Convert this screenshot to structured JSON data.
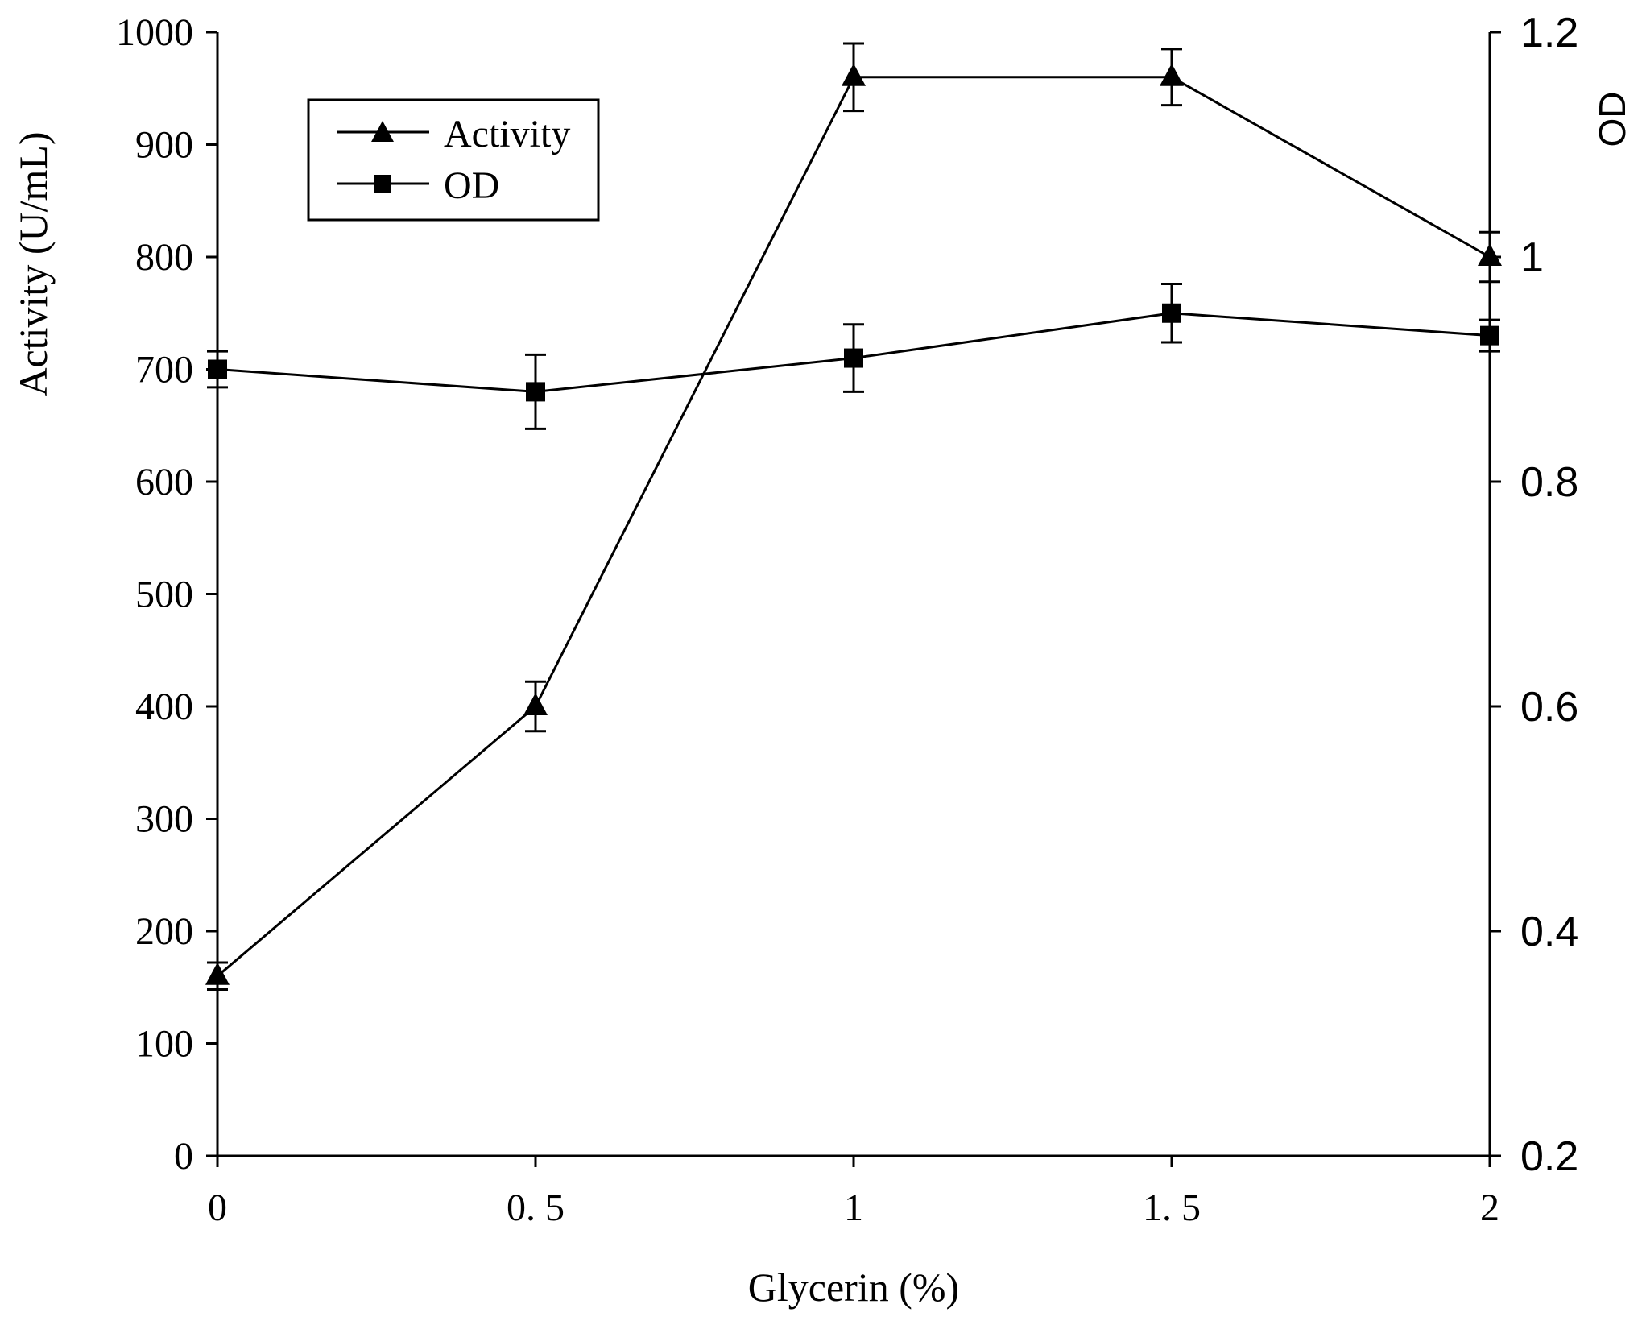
{
  "chart_data": {
    "type": "line",
    "title": "",
    "xlabel": "Glycerin (%)",
    "ylabel_left": "Activity (U/mL)",
    "ylabel_right": "OD",
    "x": [
      0,
      0.5,
      1,
      1.5,
      2
    ],
    "x_tick_labels": [
      "0",
      "0. 5",
      "1",
      "1. 5",
      "2"
    ],
    "ylim_left": [
      0,
      1000
    ],
    "yticks_left": [
      "0",
      "100",
      "200",
      "300",
      "400",
      "500",
      "600",
      "700",
      "800",
      "900",
      "1000"
    ],
    "ylim_right": [
      0.2,
      1.2
    ],
    "yticks_right": [
      "0.2",
      "0.4",
      "0.6",
      "0.8",
      "1",
      "1.2"
    ],
    "grid": false,
    "legend_position": "top-left",
    "series": [
      {
        "name": "Activity",
        "axis": "left",
        "marker": "triangle",
        "values": [
          160,
          400,
          960,
          960,
          800
        ],
        "errors": [
          12,
          22,
          30,
          25,
          22
        ]
      },
      {
        "name": "OD",
        "axis": "right",
        "marker": "square",
        "values": [
          0.9,
          0.88,
          0.91,
          0.95,
          0.93
        ],
        "errors": [
          0.016,
          0.033,
          0.03,
          0.026,
          0.014
        ]
      }
    ],
    "colors": {
      "line": "#000000",
      "background": "#ffffff"
    }
  }
}
